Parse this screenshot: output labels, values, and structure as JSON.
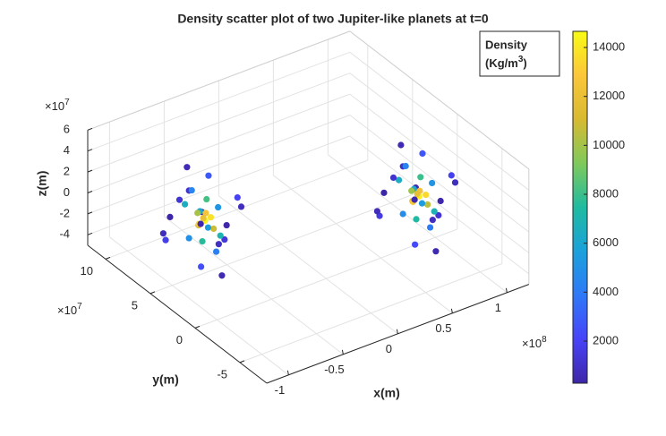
{
  "chart_data": {
    "type": "scatter3d",
    "title": "Density scatter plot of two Jupiter-like planets at t=0",
    "xlabel": "x(m)",
    "ylabel": "y(m)",
    "zlabel": "z(m)",
    "x_multiplier": {
      "base": "×10",
      "exponent": "8"
    },
    "y_multiplier": {
      "base": "×10",
      "exponent": "7"
    },
    "z_multiplier": {
      "base": "×10",
      "exponent": "7"
    },
    "xlim": [
      -1.2,
      1.2
    ],
    "ylim": [
      -8,
      12
    ],
    "zlim": [
      -5,
      6
    ],
    "xticks": [
      -1,
      -0.5,
      0,
      0.5,
      1
    ],
    "yticks": [
      -5,
      0,
      5,
      10
    ],
    "zticks": [
      -4,
      -2,
      0,
      2,
      4,
      6
    ],
    "grid": true,
    "colorbar_title": {
      "line1": "Density",
      "line2": "(Kg/m",
      "line2_exponent": "3",
      "line2_end": ")"
    },
    "clim": [
      280,
      14660
    ],
    "cticks": [
      2000,
      4000,
      6000,
      8000,
      10000,
      12000,
      14000
    ],
    "colormap": [
      "#3e26a8",
      "#4743f8",
      "#2f78f8",
      "#1ba1db",
      "#1fbba0",
      "#7fc95b",
      "#d8ba31",
      "#fbc63a",
      "#f9fb15"
    ],
    "x": [
      -0.7,
      -0.68,
      -0.73,
      -0.66,
      -0.74,
      -0.71,
      -0.67,
      -0.76,
      -0.62,
      -0.79,
      -0.6,
      -0.81,
      -0.64,
      -0.77,
      -0.58,
      -0.83,
      -0.69,
      -0.72,
      -0.52,
      -0.9,
      -0.55,
      -0.88,
      -0.48,
      -0.95,
      -0.6,
      -0.82,
      -0.45,
      -1.0,
      -0.66,
      -0.75,
      -0.5,
      -0.92,
      -0.42,
      -1.02,
      0.8,
      0.83,
      0.77,
      0.84,
      0.76,
      0.79,
      0.83,
      0.74,
      0.88,
      0.71,
      0.9,
      0.69,
      0.86,
      0.73,
      0.92,
      0.67,
      0.81,
      0.78,
      0.98,
      0.6,
      0.95,
      0.62,
      1.02,
      0.55,
      0.9,
      0.68,
      1.05,
      0.5,
      0.84,
      0.75,
      1.0,
      0.58,
      1.08,
      0.48
    ],
    "y": [
      5.0,
      4.6,
      5.3,
      5.4,
      4.7,
      5.6,
      4.4,
      5.1,
      5.8,
      4.2,
      4.5,
      5.9,
      6.3,
      3.8,
      5.0,
      5.2,
      6.6,
      3.5,
      6.8,
      3.0,
      3.2,
      7.2,
      5.5,
      4.8,
      8.0,
      2.0,
      4.0,
      6.0,
      7.5,
      2.5,
      7.8,
      2.8,
      6.0,
      5.0,
      -0.6,
      -1.0,
      -0.3,
      -0.2,
      -0.9,
      0.0,
      -1.2,
      -0.5,
      0.2,
      -1.4,
      -1.1,
      0.3,
      0.7,
      -1.8,
      -0.6,
      -0.4,
      1.0,
      -2.1,
      1.2,
      -2.6,
      -2.4,
      1.6,
      -0.1,
      -0.8,
      2.4,
      -3.6,
      -1.6,
      0.4,
      1.9,
      -3.1,
      2.2,
      -2.8,
      0.4,
      -0.6
    ],
    "z": [
      0.0,
      0.5,
      -0.4,
      0.3,
      0.6,
      -0.8,
      -0.5,
      0.9,
      1.2,
      -1.1,
      -1.5,
      1.4,
      -0.2,
      0.4,
      0.8,
      -1.3,
      1.8,
      -1.9,
      2.4,
      -2.3,
      2.8,
      -2.6,
      -3.0,
      3.1,
      0.5,
      0.2,
      1.0,
      -0.7,
      3.3,
      -3.4,
      -1.8,
      2.0,
      -2.2,
      1.6,
      0.1,
      0.4,
      -0.5,
      0.2,
      0.7,
      -0.7,
      -0.4,
      0.8,
      1.1,
      -1.2,
      -1.4,
      1.5,
      -0.3,
      0.5,
      0.9,
      -1.2,
      1.9,
      -1.8,
      2.3,
      -2.4,
      2.7,
      -2.5,
      -2.9,
      3.0,
      0.6,
      0.3,
      1.1,
      -0.8,
      3.2,
      -3.3,
      -1.7,
      2.1,
      -2.1,
      1.7
    ],
    "density": [
      14500,
      13800,
      13200,
      12600,
      12000,
      11200,
      10800,
      10100,
      8200,
      7600,
      7000,
      6500,
      6000,
      5600,
      5200,
      4900,
      4500,
      4200,
      2800,
      2400,
      2000,
      1700,
      1400,
      1200,
      1000,
      900,
      800,
      700,
      600,
      500,
      450,
      400,
      350,
      300,
      14200,
      13500,
      13000,
      12400,
      11800,
      11000,
      10500,
      9900,
      8000,
      7400,
      6900,
      6400,
      5900,
      5500,
      5100,
      4800,
      4400,
      4100,
      2700,
      2300,
      1900,
      1600,
      1300,
      1100,
      950,
      850,
      750,
      650,
      550,
      480,
      420,
      380,
      330,
      280
    ]
  }
}
